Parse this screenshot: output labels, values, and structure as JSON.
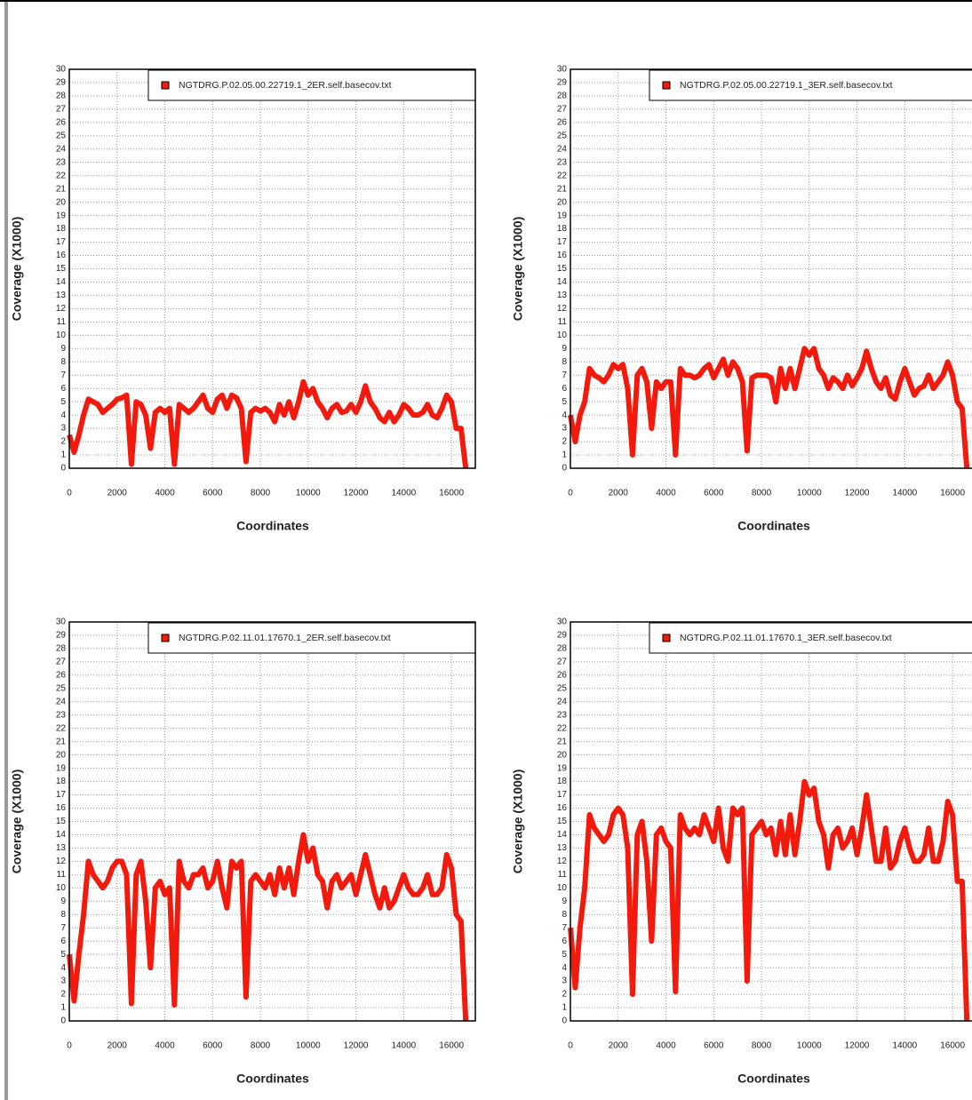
{
  "chart_data": [
    {
      "type": "line",
      "xlabel": "Coordinates",
      "ylabel": "Coverage (X1000)",
      "grid": true,
      "legend": "upper right",
      "xlim": [
        0,
        17000
      ],
      "ylim": [
        0,
        30
      ],
      "xticks": [
        0,
        2000,
        4000,
        6000,
        8000,
        10000,
        12000,
        14000,
        16000
      ],
      "yticks": [
        0,
        1,
        2,
        3,
        4,
        5,
        6,
        7,
        8,
        9,
        10,
        11,
        12,
        13,
        14,
        15,
        16,
        17,
        18,
        19,
        20,
        21,
        22,
        23,
        24,
        25,
        26,
        27,
        28,
        29,
        30
      ],
      "x": [
        0,
        200,
        400,
        600,
        800,
        1000,
        1200,
        1400,
        1600,
        1800,
        2000,
        2200,
        2400,
        2600,
        2800,
        3000,
        3200,
        3400,
        3600,
        3800,
        4000,
        4200,
        4400,
        4600,
        4800,
        5000,
        5200,
        5400,
        5600,
        5800,
        6000,
        6200,
        6400,
        6600,
        6800,
        7000,
        7200,
        7400,
        7600,
        7800,
        8000,
        8200,
        8400,
        8600,
        8800,
        9000,
        9200,
        9400,
        9600,
        9800,
        10000,
        10200,
        10400,
        10600,
        10800,
        11000,
        11200,
        11400,
        11600,
        11800,
        12000,
        12200,
        12400,
        12600,
        12800,
        13000,
        13200,
        13400,
        13600,
        13800,
        14000,
        14200,
        14400,
        14600,
        14800,
        15000,
        15200,
        15400,
        15600,
        15800,
        16000,
        16200,
        16400,
        16600
      ],
      "series": [
        {
          "name": "NGTDRG.P.02.05.00.22719.1_2ER.self.basecov.txt",
          "color": "#f21a0c",
          "values": [
            2.5,
            1.2,
            2.5,
            4,
            5.2,
            5,
            4.8,
            4.2,
            4.5,
            4.8,
            5.2,
            5.3,
            5.5,
            0.3,
            5,
            4.8,
            4,
            1.5,
            4.2,
            4.5,
            4.2,
            4.5,
            0.3,
            4.8,
            4.5,
            4.2,
            4.5,
            5,
            5.5,
            4.5,
            4.2,
            5.2,
            5.5,
            4.5,
            5.5,
            5.3,
            4.5,
            0.5,
            4.2,
            4.5,
            4.3,
            4.5,
            4.2,
            3.5,
            4.8,
            4,
            5,
            3.8,
            5,
            6.5,
            5.5,
            6,
            5,
            4.5,
            3.8,
            4.5,
            4.8,
            4.2,
            4.3,
            4.8,
            4.2,
            5,
            6.2,
            5,
            4.5,
            3.8,
            3.5,
            4.2,
            3.5,
            4,
            4.8,
            4.5,
            4,
            4,
            4.2,
            4.8,
            4,
            3.8,
            4.5,
            5.5,
            5,
            3,
            3,
            0
          ]
        }
      ]
    },
    {
      "type": "line",
      "xlabel": "Coordinates",
      "ylabel": "Coverage (X1000)",
      "grid": true,
      "legend": "upper right",
      "xlim": [
        0,
        17000
      ],
      "ylim": [
        0,
        30
      ],
      "xticks": [
        0,
        2000,
        4000,
        6000,
        8000,
        10000,
        12000,
        14000,
        16000
      ],
      "yticks": [
        0,
        1,
        2,
        3,
        4,
        5,
        6,
        7,
        8,
        9,
        10,
        11,
        12,
        13,
        14,
        15,
        16,
        17,
        18,
        19,
        20,
        21,
        22,
        23,
        24,
        25,
        26,
        27,
        28,
        29,
        30
      ],
      "x": [
        0,
        200,
        400,
        600,
        800,
        1000,
        1200,
        1400,
        1600,
        1800,
        2000,
        2200,
        2400,
        2600,
        2800,
        3000,
        3200,
        3400,
        3600,
        3800,
        4000,
        4200,
        4400,
        4600,
        4800,
        5000,
        5200,
        5400,
        5600,
        5800,
        6000,
        6200,
        6400,
        6600,
        6800,
        7000,
        7200,
        7400,
        7600,
        7800,
        8000,
        8200,
        8400,
        8600,
        8800,
        9000,
        9200,
        9400,
        9600,
        9800,
        10000,
        10200,
        10400,
        10600,
        10800,
        11000,
        11200,
        11400,
        11600,
        11800,
        12000,
        12200,
        12400,
        12600,
        12800,
        13000,
        13200,
        13400,
        13600,
        13800,
        14000,
        14200,
        14400,
        14600,
        14800,
        15000,
        15200,
        15400,
        15600,
        15800,
        16000,
        16200,
        16400,
        16600
      ],
      "series": [
        {
          "name": "NGTDRG.P.02.05.00.22719.1_3ER.self.basecov.txt",
          "color": "#f21a0c",
          "values": [
            4,
            2,
            4,
            5,
            7.5,
            7,
            6.8,
            6.5,
            7,
            7.8,
            7.5,
            7.8,
            6,
            1,
            7,
            7.5,
            6.5,
            3,
            6.5,
            6,
            6.5,
            6.5,
            1,
            7.5,
            7,
            7,
            6.8,
            7,
            7.5,
            7.8,
            6.8,
            7.5,
            8.2,
            7,
            8,
            7.5,
            6.5,
            1.3,
            6.8,
            7,
            7,
            7,
            6.8,
            5,
            7.5,
            6,
            7.5,
            6,
            7.5,
            9,
            8.5,
            9,
            7.5,
            7,
            6,
            6.8,
            6.5,
            6,
            7,
            6.2,
            6.8,
            7.5,
            8.8,
            7.5,
            6.5,
            6,
            6.8,
            5.5,
            5.2,
            6.5,
            7.5,
            6.5,
            5.5,
            6,
            6.2,
            7,
            6,
            6.5,
            7,
            8,
            7,
            5,
            4.5,
            0
          ]
        }
      ]
    },
    {
      "type": "line",
      "xlabel": "Coordinates",
      "ylabel": "Coverage (X1000)",
      "grid": true,
      "legend": "upper right",
      "xlim": [
        0,
        17000
      ],
      "ylim": [
        0,
        30
      ],
      "xticks": [
        0,
        2000,
        4000,
        6000,
        8000,
        10000,
        12000,
        14000,
        16000
      ],
      "yticks": [
        0,
        1,
        2,
        3,
        4,
        5,
        6,
        7,
        8,
        9,
        10,
        11,
        12,
        13,
        14,
        15,
        16,
        17,
        18,
        19,
        20,
        21,
        22,
        23,
        24,
        25,
        26,
        27,
        28,
        29,
        30
      ],
      "x": [
        0,
        200,
        400,
        600,
        800,
        1000,
        1200,
        1400,
        1600,
        1800,
        2000,
        2200,
        2400,
        2600,
        2800,
        3000,
        3200,
        3400,
        3600,
        3800,
        4000,
        4200,
        4400,
        4600,
        4800,
        5000,
        5200,
        5400,
        5600,
        5800,
        6000,
        6200,
        6400,
        6600,
        6800,
        7000,
        7200,
        7400,
        7600,
        7800,
        8000,
        8200,
        8400,
        8600,
        8800,
        9000,
        9200,
        9400,
        9600,
        9800,
        10000,
        10200,
        10400,
        10600,
        10800,
        11000,
        11200,
        11400,
        11600,
        11800,
        12000,
        12200,
        12400,
        12600,
        12800,
        13000,
        13200,
        13400,
        13600,
        13800,
        14000,
        14200,
        14400,
        14600,
        14800,
        15000,
        15200,
        15400,
        15600,
        15800,
        16000,
        16200,
        16400,
        16600
      ],
      "series": [
        {
          "name": "NGTDRG.P.02.11.01.17670.1_2ER.self.basecov.txt",
          "color": "#f21a0c",
          "values": [
            5,
            1.5,
            5,
            8,
            12,
            11,
            10.5,
            10,
            10.5,
            11.5,
            12,
            12,
            11,
            1.3,
            11,
            12,
            9,
            4,
            10,
            10.5,
            9.5,
            10,
            1.2,
            12,
            10.5,
            10,
            11,
            11,
            11.5,
            10,
            10.5,
            12,
            10,
            8.5,
            12,
            11.5,
            12,
            1.8,
            10.5,
            11,
            10.5,
            10,
            11,
            9.5,
            11.5,
            10,
            11.5,
            9.5,
            12,
            14,
            12,
            13,
            11,
            10.5,
            8.5,
            10.5,
            11,
            10,
            10.5,
            11,
            9.5,
            11,
            12.5,
            11,
            9.5,
            8.5,
            10,
            8.5,
            9,
            10,
            11,
            10,
            9.5,
            9.5,
            10,
            11,
            9.5,
            9.5,
            10,
            12.5,
            11.5,
            8,
            7.5,
            0
          ]
        }
      ]
    },
    {
      "type": "line",
      "xlabel": "Coordinates",
      "ylabel": "Coverage (X1000)",
      "grid": true,
      "legend": "upper right",
      "xlim": [
        0,
        17000
      ],
      "ylim": [
        0,
        30
      ],
      "xticks": [
        0,
        2000,
        4000,
        6000,
        8000,
        10000,
        12000,
        14000,
        16000
      ],
      "yticks": [
        0,
        1,
        2,
        3,
        4,
        5,
        6,
        7,
        8,
        9,
        10,
        11,
        12,
        13,
        14,
        15,
        16,
        17,
        18,
        19,
        20,
        21,
        22,
        23,
        24,
        25,
        26,
        27,
        28,
        29,
        30
      ],
      "x": [
        0,
        200,
        400,
        600,
        800,
        1000,
        1200,
        1400,
        1600,
        1800,
        2000,
        2200,
        2400,
        2600,
        2800,
        3000,
        3200,
        3400,
        3600,
        3800,
        4000,
        4200,
        4400,
        4600,
        4800,
        5000,
        5200,
        5400,
        5600,
        5800,
        6000,
        6200,
        6400,
        6600,
        6800,
        7000,
        7200,
        7400,
        7600,
        7800,
        8000,
        8200,
        8400,
        8600,
        8800,
        9000,
        9200,
        9400,
        9600,
        9800,
        10000,
        10200,
        10400,
        10600,
        10800,
        11000,
        11200,
        11400,
        11600,
        11800,
        12000,
        12200,
        12400,
        12600,
        12800,
        13000,
        13200,
        13400,
        13600,
        13800,
        14000,
        14200,
        14400,
        14600,
        14800,
        15000,
        15200,
        15400,
        15600,
        15800,
        16000,
        16200,
        16400,
        16600
      ],
      "series": [
        {
          "name": "NGTDRG.P.02.11.01.17670.1_3ER.self.basecov.txt",
          "color": "#f21a0c",
          "values": [
            7,
            2.5,
            7,
            10,
            15.5,
            14.5,
            14,
            13.5,
            14,
            15.5,
            16,
            15.5,
            13,
            2,
            14,
            15,
            12,
            6,
            14,
            14.5,
            13.5,
            13,
            2.2,
            15.5,
            14.5,
            14,
            14.5,
            14,
            15.5,
            14.5,
            13.5,
            16,
            13,
            12,
            16,
            15.5,
            16,
            3,
            14,
            14.5,
            15,
            14,
            14.5,
            12.5,
            15,
            12.5,
            15.5,
            12.5,
            15,
            18,
            17,
            17.5,
            15,
            14,
            11.5,
            14,
            14.5,
            13,
            13.5,
            14.5,
            12.5,
            14.5,
            17,
            14.5,
            12,
            12,
            14.5,
            11.5,
            12,
            13.5,
            14.5,
            13,
            12,
            12,
            12.5,
            14.5,
            12,
            12,
            13.5,
            16.5,
            15.5,
            10.5,
            10.5,
            0
          ]
        }
      ]
    }
  ]
}
